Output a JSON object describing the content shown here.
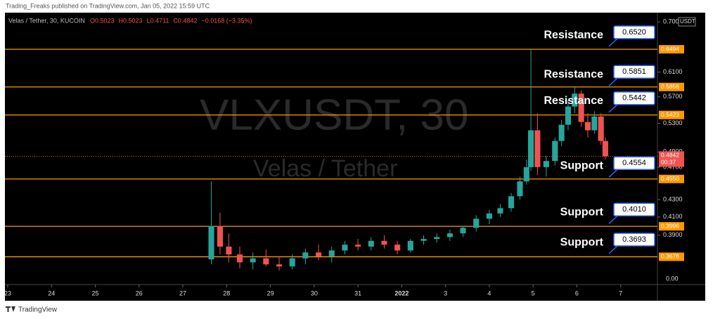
{
  "header": "Trading_Freaks published on TradingView.com, Jan 05, 2022 15:59 UTC",
  "footer": "TradingView",
  "chart_data": {
    "type": "candlestick",
    "symbol": "Velas / Tether, 30, KUCOIN",
    "ohlc_legend": [
      "O0.5023",
      "H0.5023",
      "L0.4711",
      "C0.4842",
      "−0.0168 (−3.35%)"
    ],
    "watermark": "VLXUSDT, 30",
    "watermark_sub": "Velas / Tether",
    "x": [
      4.65,
      4.85,
      5.05,
      5.3,
      5.6,
      5.9,
      6.2,
      6.5,
      6.8,
      7.1,
      7.4,
      7.7,
      8.0,
      8.3,
      8.6,
      8.9,
      9.2,
      9.5,
      9.8,
      10.1,
      10.4,
      10.7,
      11.0,
      11.25,
      11.5,
      11.7,
      11.85,
      11.95,
      12.1,
      12.3,
      12.5,
      12.65,
      12.8,
      12.95,
      13.1,
      13.25,
      13.4,
      13.55,
      13.65
    ],
    "open": [
      0.365,
      0.4,
      0.378,
      0.37,
      0.362,
      0.366,
      0.36,
      0.358,
      0.366,
      0.372,
      0.368,
      0.374,
      0.38,
      0.378,
      0.384,
      0.38,
      0.374,
      0.384,
      0.386,
      0.388,
      0.392,
      0.398,
      0.408,
      0.414,
      0.42,
      0.434,
      0.452,
      0.47,
      0.52,
      0.47,
      0.478,
      0.505,
      0.528,
      0.555,
      0.575,
      0.532,
      0.52,
      0.54,
      0.505
    ],
    "high": [
      0.452,
      0.415,
      0.392,
      0.378,
      0.372,
      0.375,
      0.368,
      0.37,
      0.376,
      0.38,
      0.378,
      0.384,
      0.386,
      0.388,
      0.39,
      0.384,
      0.386,
      0.39,
      0.392,
      0.396,
      0.4,
      0.412,
      0.418,
      0.425,
      0.438,
      0.458,
      0.48,
      0.6494,
      0.545,
      0.485,
      0.51,
      0.535,
      0.565,
      0.585,
      0.58,
      0.545,
      0.548,
      0.545,
      0.51
    ],
    "low": [
      0.36,
      0.37,
      0.362,
      0.356,
      0.355,
      0.358,
      0.354,
      0.355,
      0.36,
      0.364,
      0.362,
      0.37,
      0.374,
      0.374,
      0.376,
      0.37,
      0.372,
      0.38,
      0.382,
      0.384,
      0.388,
      0.394,
      0.402,
      0.41,
      0.416,
      0.43,
      0.448,
      0.465,
      0.46,
      0.458,
      0.472,
      0.498,
      0.52,
      0.545,
      0.525,
      0.51,
      0.515,
      0.5,
      0.48
    ],
    "close": [
      0.4,
      0.378,
      0.37,
      0.362,
      0.366,
      0.36,
      0.358,
      0.366,
      0.372,
      0.368,
      0.374,
      0.38,
      0.378,
      0.384,
      0.38,
      0.374,
      0.384,
      0.386,
      0.388,
      0.392,
      0.398,
      0.408,
      0.414,
      0.42,
      0.434,
      0.452,
      0.47,
      0.52,
      0.47,
      0.478,
      0.505,
      0.528,
      0.555,
      0.575,
      0.532,
      0.52,
      0.54,
      0.505,
      0.4842
    ],
    "up_color": "#26a69a",
    "down_color": "#ef5350",
    "xlim": [
      -0.064,
      14.84
    ],
    "xticks": [
      {
        "value": 0,
        "label": "23"
      },
      {
        "value": 1,
        "label": "24"
      },
      {
        "value": 2,
        "label": "25"
      },
      {
        "value": 3,
        "label": "26"
      },
      {
        "value": 4,
        "label": "27"
      },
      {
        "value": 5,
        "label": "28"
      },
      {
        "value": 6,
        "label": "29"
      },
      {
        "value": 7,
        "label": "30"
      },
      {
        "value": 8,
        "label": "31"
      },
      {
        "value": 9,
        "label": "2022"
      },
      {
        "value": 10,
        "label": "3"
      },
      {
        "value": 11,
        "label": "4"
      },
      {
        "value": 12,
        "label": "5"
      },
      {
        "value": 13,
        "label": "6"
      },
      {
        "value": 14,
        "label": "7"
      }
    ],
    "ylim": [
      0.354,
      0.718
    ],
    "log_scale": true,
    "grid": false,
    "y_unit": "USDT",
    "yticks": [
      {
        "value": 0.7,
        "label": "0.7000"
      },
      {
        "value": 0.61,
        "label": "0.6100"
      },
      {
        "value": 0.57,
        "label": "0.5700"
      },
      {
        "value": 0.53,
        "label": "0.5300"
      },
      {
        "value": 0.49,
        "label": "0.4900"
      },
      {
        "value": 0.47,
        "label": "0.4700"
      },
      {
        "value": 0.43,
        "label": "0.4300"
      },
      {
        "value": 0.41,
        "label": "0.4100"
      },
      {
        "value": 0.39,
        "label": "0.3900"
      }
    ],
    "lower_pane_tick": "0.00",
    "level_color": "#ff9800",
    "levels": [
      0.6494,
      0.5856,
      0.5423,
      {
        "value": 0.455,
        "label": "0.4550"
      },
      0.3996,
      0.3676
    ],
    "last_price": 0.4842,
    "countdown": "00:37",
    "annotations": [
      {
        "text": "Resistance",
        "price": {
          "value": 0.652,
          "label": "0.6520"
        }
      },
      {
        "text": "Resistance",
        "price": 0.5851
      },
      {
        "text": "Resistance",
        "price": 0.5442
      },
      {
        "text": "Support",
        "price": 0.4554
      },
      {
        "text": "Support",
        "price": {
          "value": 0.401,
          "label": "0.4010"
        }
      },
      {
        "text": "Support",
        "price": 0.3693
      }
    ]
  }
}
